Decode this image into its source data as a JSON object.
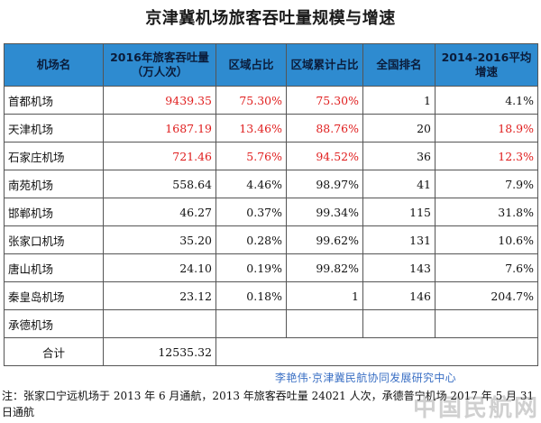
{
  "title": "京津冀机场旅客吞吐量规模与增速",
  "table": {
    "headers": [
      "机场名",
      "2016年旅客吞吐量 （万人次）",
      "区域占比",
      "区域累计占比",
      "全国排名",
      "2014-2016平均增速"
    ],
    "rows": [
      {
        "name": "首都机场",
        "throughput": "9439.35",
        "share": "75.30%",
        "cumulative": "75.30%",
        "rank": "1",
        "growth": "4.1%"
      },
      {
        "name": "天津机场",
        "throughput": "1687.19",
        "share": "13.46%",
        "cumulative": "88.76%",
        "rank": "20",
        "growth": "18.9%"
      },
      {
        "name": "石家庄机场",
        "throughput": "721.46",
        "share": "5.76%",
        "cumulative": "94.52%",
        "rank": "36",
        "growth": "12.3%"
      },
      {
        "name": "南苑机场",
        "throughput": "558.64",
        "share": "4.46%",
        "cumulative": "98.97%",
        "rank": "41",
        "growth": "7.9%"
      },
      {
        "name": "邯郸机场",
        "throughput": "46.27",
        "share": "0.37%",
        "cumulative": "99.34%",
        "rank": "115",
        "growth": "31.8%"
      },
      {
        "name": "张家口机场",
        "throughput": "35.20",
        "share": "0.28%",
        "cumulative": "99.62%",
        "rank": "131",
        "growth": "10.6%"
      },
      {
        "name": "唐山机场",
        "throughput": "24.10",
        "share": "0.19%",
        "cumulative": "99.82%",
        "rank": "143",
        "growth": "7.6%"
      },
      {
        "name": "秦皇岛机场",
        "throughput": "23.12",
        "share": "0.18%",
        "cumulative": "1",
        "rank": "146",
        "growth": "204.7%"
      },
      {
        "name": "承德机场",
        "throughput": "",
        "share": "",
        "cumulative": "",
        "rank": "",
        "growth": ""
      }
    ],
    "total": {
      "label": "合计",
      "throughput": "12535.32"
    }
  },
  "caption": "李艳伟·京津冀民航协同发展研究中心",
  "note": "注：张家口宁远机场于 2013 年 6 月通航，2013 年旅客吞吐量 24021 人次，承德普宁机场 2017 年 5 月 31 日通航",
  "logo": "中国民航网",
  "colors": {
    "header_bg": "#2e8bd0",
    "highlight_red": "#e01e1e",
    "caption_blue": "#3a6fc4"
  }
}
